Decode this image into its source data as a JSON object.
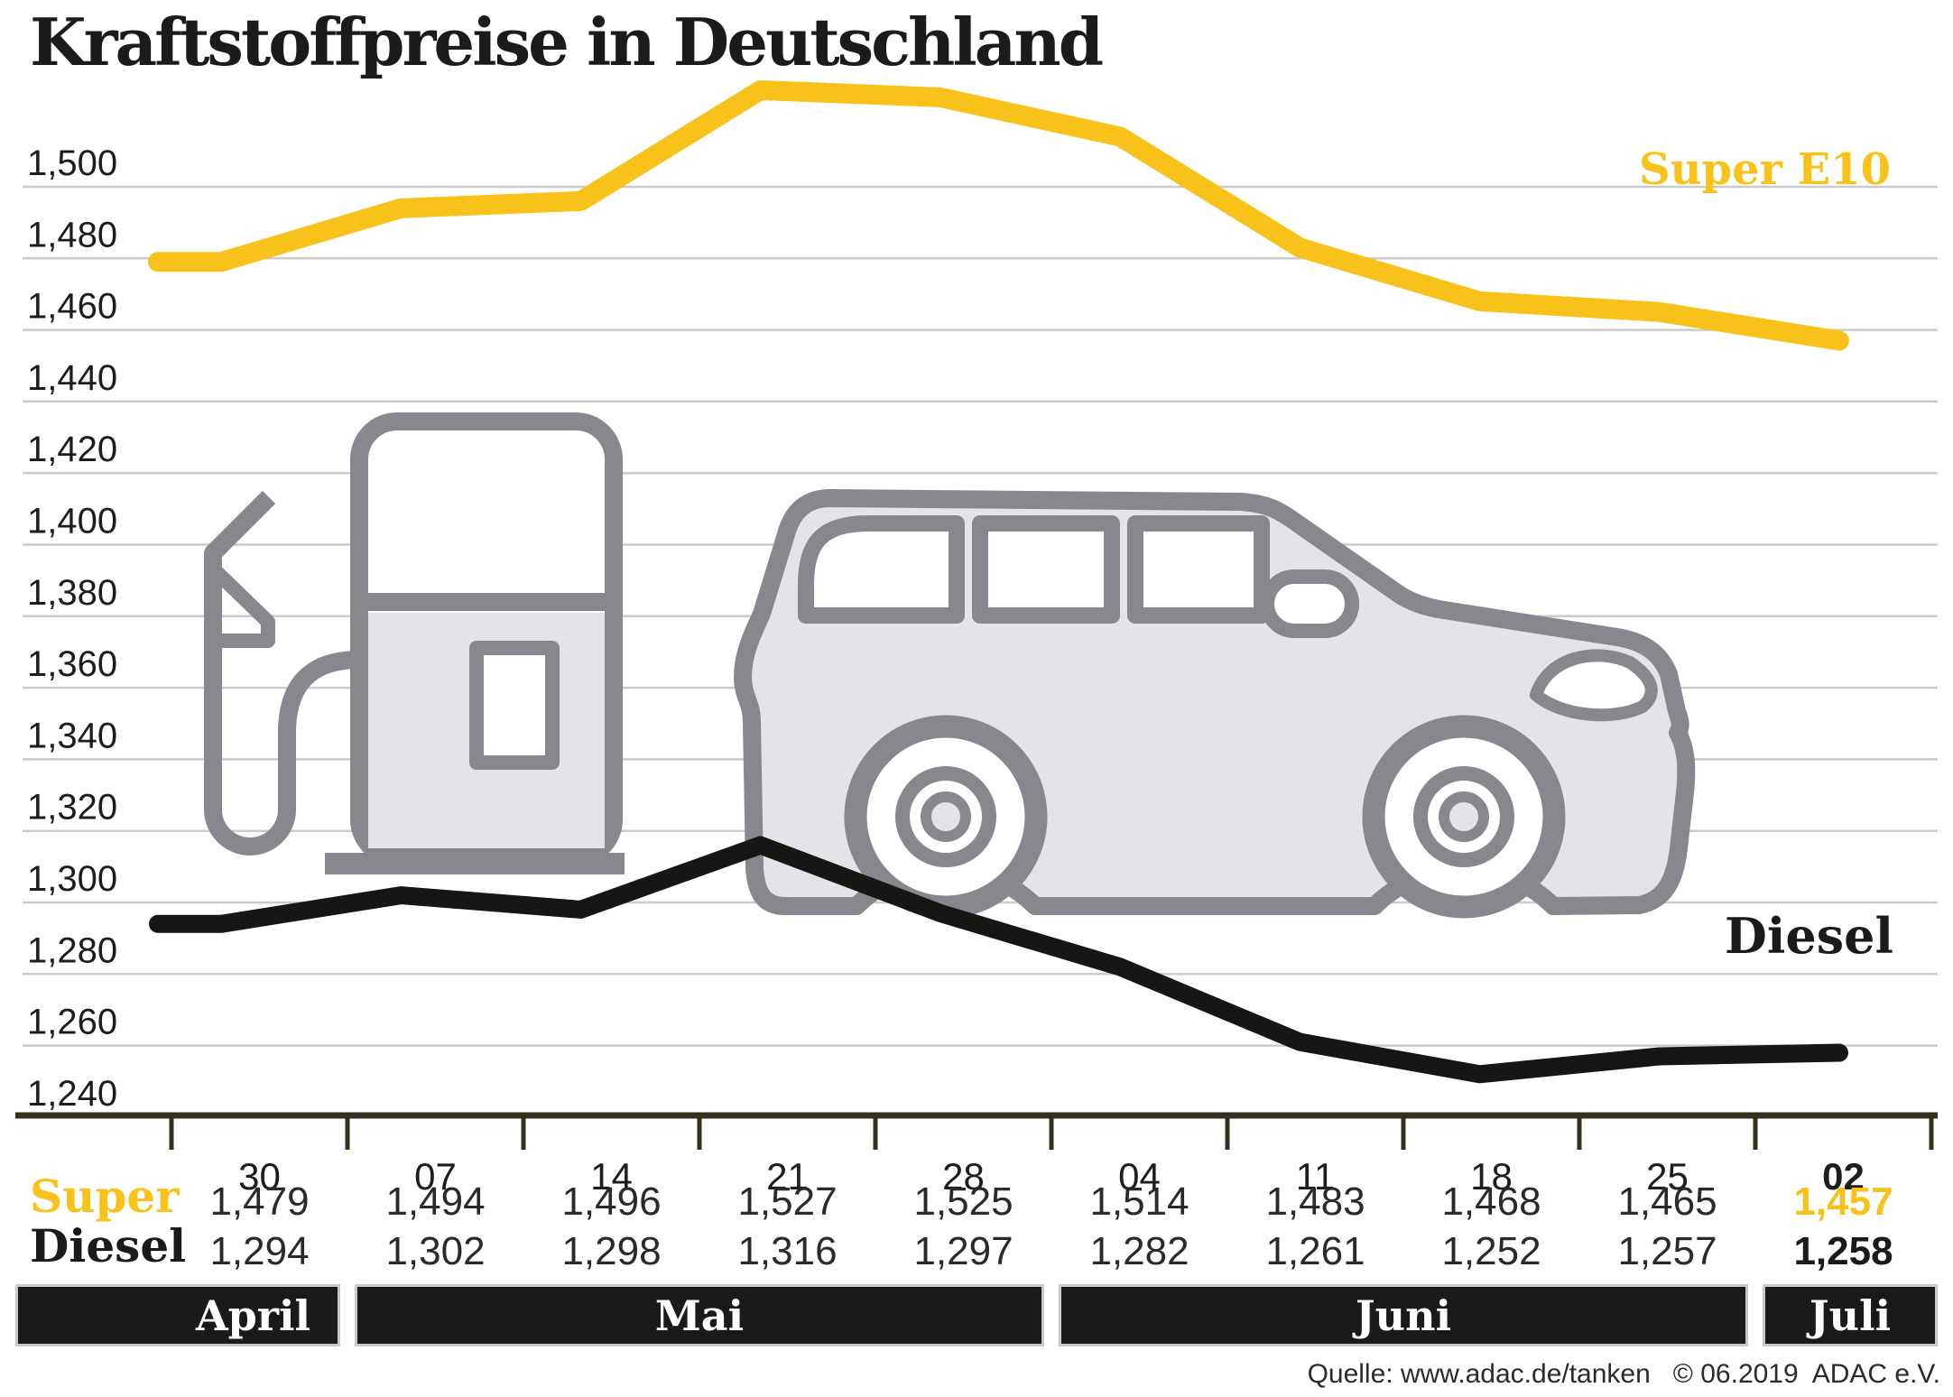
{
  "title": "Kraftstoffpreise in Deutschland",
  "source": "Quelle: www.adac.de/tanken   © 06.2019  ADAC e.V.",
  "colors": {
    "yellow": "#F8C21B",
    "black": "#161614",
    "grid": "#cbcbcb",
    "axis": "#33301d",
    "label_text": "#1d1d1b",
    "value_text": "#2a2a28",
    "vehicle_stroke": "#88878d",
    "vehicle_fill": "#e3e4e8",
    "bar_bg": "#1a1a18",
    "bar_border": "#c9c9c9"
  },
  "chart_data": {
    "type": "line",
    "title": "Kraftstoffpreise in Deutschland",
    "unit_note": "prices in Euro per litre, decimal comma format",
    "x_labels": [
      "30",
      "07",
      "14",
      "21",
      "28",
      "04",
      "11",
      "18",
      "25",
      "02"
    ],
    "months": [
      {
        "label": "April",
        "cols": [
          0,
          0
        ]
      },
      {
        "label": "Mai",
        "cols": [
          1,
          4
        ]
      },
      {
        "label": "Juni",
        "cols": [
          5,
          8
        ]
      },
      {
        "label": "Juli",
        "cols": [
          9,
          9
        ]
      }
    ],
    "ylim": [
      1240,
      1500
    ],
    "ytick_step": 20,
    "yticks": [
      1500,
      1480,
      1460,
      1440,
      1420,
      1400,
      1380,
      1360,
      1340,
      1320,
      1300,
      1280,
      1260,
      1240
    ],
    "ytick_labels": [
      "1,500",
      "1,480",
      "1,460",
      "1,440",
      "1,420",
      "1,400",
      "1,380",
      "1,360",
      "1,340",
      "1,320",
      "1,300",
      "1,280",
      "1,260",
      "1,240"
    ],
    "grid": true,
    "legend_position": "line-end-right",
    "series": [
      {
        "name": "Super",
        "chart_label": "Super E10",
        "color": "#F8C21B",
        "values": [
          1479,
          1494,
          1496,
          1527,
          1525,
          1514,
          1483,
          1468,
          1465,
          1457
        ],
        "display": [
          "1,479",
          "1,494",
          "1,496",
          "1,527",
          "1,525",
          "1,514",
          "1,483",
          "1,468",
          "1,465",
          "1,457"
        ]
      },
      {
        "name": "Diesel",
        "chart_label": "Diesel",
        "color": "#161614",
        "values": [
          1294,
          1302,
          1298,
          1316,
          1297,
          1282,
          1261,
          1252,
          1257,
          1258
        ],
        "display": [
          "1,294",
          "1,302",
          "1,298",
          "1,316",
          "1,297",
          "1,282",
          "1,261",
          "1,252",
          "1,257",
          "1,258"
        ]
      }
    ],
    "highlight_last_column": true
  }
}
